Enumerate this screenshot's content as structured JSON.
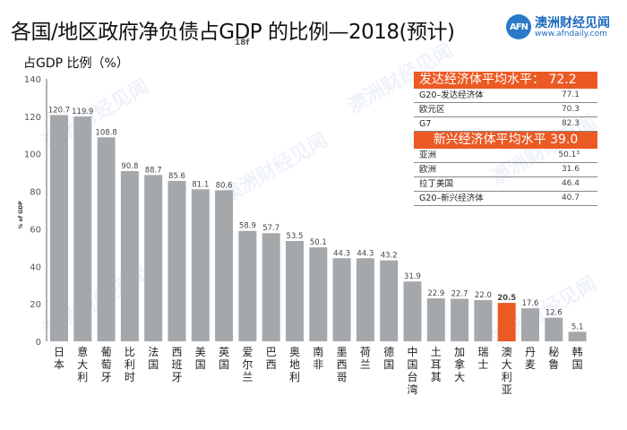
{
  "header": {
    "title": "各国/地区政府净负债占GDP 的比例—2018(预计)",
    "stray_mark": "18f",
    "subtitle": "占GDP 比例（%）"
  },
  "logo": {
    "mark": "AFN",
    "name": "澳洲财经见闻",
    "url": "www.afndaily.com"
  },
  "watermark_text": "澳洲财经见闻",
  "colors": {
    "bar": "#a5a8ab",
    "highlight": "#ec5a24",
    "axis": "#666666",
    "panel_header": "#ec5a24"
  },
  "chart_data": {
    "type": "bar",
    "title": "各国/地区政府净负债占GDP 的比例—2018(预计)",
    "xlabel": "",
    "ylabel": "% of GDP",
    "ylim": [
      0,
      140
    ],
    "yticks": [
      0,
      20,
      40,
      60,
      80,
      100,
      120,
      140
    ],
    "grid": false,
    "categories": [
      "日本",
      "意大利",
      "葡萄牙",
      "比利时",
      "法国",
      "西班牙",
      "美国",
      "英国",
      "爱尔兰",
      "巴西",
      "奥地利",
      "南非",
      "墨西哥",
      "荷兰",
      "德国",
      "中国台湾",
      "土耳其",
      "加拿大",
      "瑞士",
      "澳大利亚",
      "丹麦",
      "秘鲁",
      "韩国"
    ],
    "values": [
      120.7,
      119.9,
      108.8,
      90.8,
      88.7,
      85.6,
      81.1,
      80.6,
      58.9,
      57.7,
      53.5,
      50.1,
      44.3,
      44.3,
      43.2,
      31.9,
      22.9,
      22.7,
      22.0,
      20.5,
      17.6,
      12.6,
      5.1
    ],
    "value_labels": [
      "120.7",
      "119.9",
      "108.8",
      "90.8",
      "88.7",
      "85.6",
      "81.1",
      "80.6",
      "58.9",
      "57.7",
      "53.5",
      "50.1",
      "44.3",
      "44.3",
      "43.2",
      "31.9",
      "22.9",
      "22.7",
      "22.0",
      "20.5",
      "17.6",
      "12.6",
      "5.1"
    ],
    "highlight": "澳大利亚"
  },
  "panel": {
    "developed": {
      "header": "发达经济体平均水平：  72.2",
      "rows": [
        {
          "label": "G20–发达经济体",
          "value": "77.1"
        },
        {
          "label": "欧元区",
          "value": "70.3"
        },
        {
          "label": "G7",
          "value": "82.3"
        }
      ]
    },
    "emerging": {
      "header": "新兴经济体平均水平 39.0",
      "rows": [
        {
          "label": "亚洲",
          "value": "50.1³"
        },
        {
          "label": "欧洲",
          "value": "31.6"
        },
        {
          "label": "拉丁美国",
          "value": "46.4"
        },
        {
          "label": "G20–新兴经济体",
          "value": "40.7"
        }
      ]
    }
  }
}
